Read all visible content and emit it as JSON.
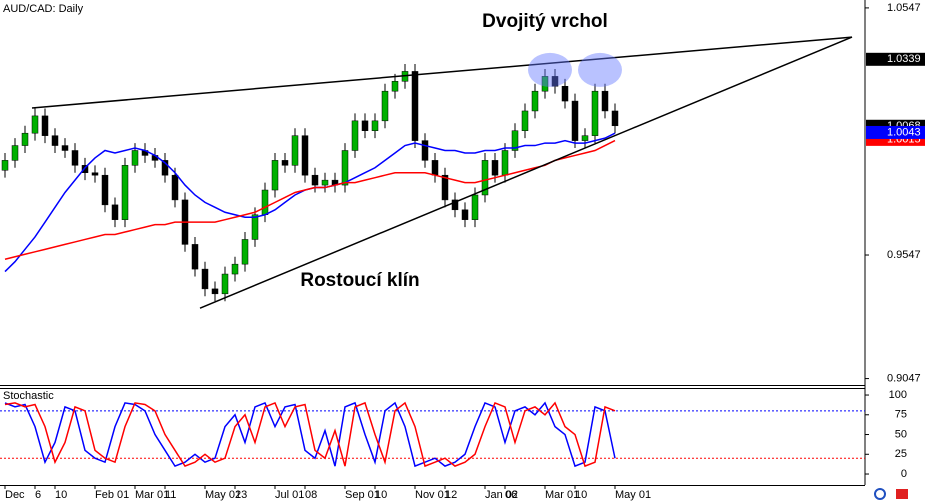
{
  "chart_data": {
    "type": "candlestick",
    "title": "AUD/CAD: Daily",
    "annotations": [
      {
        "text": "Dvojitý vrchol",
        "x": 54,
        "y": 1.049
      },
      {
        "text": "Rostoucí klín",
        "x": 35.5,
        "y": 0.9441
      }
    ],
    "categories": [
      "Dec",
      null,
      null,
      "6",
      null,
      "10",
      null,
      null,
      null,
      "Feb 01",
      null,
      null,
      null,
      "Mar 01",
      null,
      null,
      "11",
      null,
      null,
      null,
      "May 02",
      null,
      null,
      "13",
      null,
      null,
      null,
      "Jul 01",
      null,
      null,
      "08",
      null,
      null,
      null,
      "Sep 01",
      null,
      null,
      "10",
      null,
      null,
      null,
      "Nov 01",
      null,
      null,
      "12",
      null,
      null,
      null,
      "Jan 02",
      null,
      "06",
      null,
      null,
      null,
      "Mar 01",
      null,
      null,
      "10",
      null,
      null,
      null,
      "May 01"
    ],
    "open": [
      0.989,
      0.993,
      0.999,
      1.004,
      1.011,
      1.003,
      0.999,
      0.997,
      0.991,
      0.988,
      0.987,
      0.975,
      0.969,
      0.991,
      0.997,
      0.995,
      0.993,
      0.987,
      0.977,
      0.959,
      0.949,
      0.941,
      0.939,
      0.947,
      0.951,
      0.961,
      0.971,
      0.981,
      0.993,
      0.991,
      1.003,
      0.987,
      0.983,
      0.985,
      0.983,
      0.997,
      1.009,
      1.005,
      1.009,
      1.021,
      1.025,
      1.029,
      1.001,
      0.993,
      0.987,
      0.977,
      0.973,
      0.969,
      0.979,
      0.993,
      0.987,
      0.997,
      1.005,
      1.013,
      1.021,
      1.027,
      1.023,
      1.017,
      1.001,
      1.003,
      1.021,
      1.013
    ],
    "high": [
      0.996,
      1.002,
      1.007,
      1.014,
      1.014,
      1.006,
      1.002,
      1.0,
      0.994,
      0.991,
      0.99,
      0.978,
      0.994,
      1.0,
      1.0,
      0.998,
      0.996,
      0.99,
      0.98,
      0.962,
      0.952,
      0.944,
      0.95,
      0.954,
      0.964,
      0.974,
      0.984,
      0.996,
      0.996,
      1.006,
      1.006,
      0.99,
      0.988,
      0.988,
      1.0,
      1.012,
      1.012,
      1.012,
      1.024,
      1.028,
      1.032,
      1.032,
      1.004,
      0.996,
      0.99,
      0.98,
      0.976,
      0.982,
      0.996,
      0.996,
      1.0,
      1.008,
      1.016,
      1.024,
      1.03,
      1.03,
      1.026,
      1.02,
      1.006,
      1.024,
      1.024,
      1.016
    ],
    "low": [
      0.986,
      0.99,
      0.996,
      1.001,
      1.0,
      0.996,
      0.994,
      0.988,
      0.985,
      0.984,
      0.972,
      0.966,
      0.966,
      0.988,
      0.992,
      0.99,
      0.984,
      0.974,
      0.956,
      0.946,
      0.938,
      0.936,
      0.936,
      0.944,
      0.948,
      0.958,
      0.968,
      0.978,
      0.988,
      0.988,
      0.984,
      0.98,
      0.98,
      0.98,
      0.98,
      0.994,
      1.002,
      1.002,
      1.006,
      1.018,
      1.022,
      0.998,
      0.99,
      0.984,
      0.974,
      0.97,
      0.966,
      0.966,
      0.976,
      0.984,
      0.984,
      0.994,
      1.002,
      1.01,
      1.018,
      1.02,
      1.014,
      0.998,
      0.998,
      1.0,
      1.01,
      1.004
    ],
    "close": [
      0.993,
      0.999,
      1.004,
      1.011,
      1.003,
      0.999,
      0.997,
      0.991,
      0.988,
      0.987,
      0.975,
      0.969,
      0.991,
      0.997,
      0.995,
      0.993,
      0.987,
      0.977,
      0.959,
      0.949,
      0.941,
      0.939,
      0.947,
      0.951,
      0.961,
      0.971,
      0.981,
      0.993,
      0.991,
      1.003,
      0.987,
      0.983,
      0.985,
      0.983,
      0.997,
      1.009,
      1.005,
      1.009,
      1.021,
      1.025,
      1.029,
      1.001,
      0.993,
      0.987,
      0.977,
      0.973,
      0.969,
      0.979,
      0.993,
      0.987,
      0.997,
      1.005,
      1.013,
      1.021,
      1.027,
      1.023,
      1.017,
      1.001,
      1.003,
      1.021,
      1.013,
      1.007
    ],
    "up_color": "#00b000",
    "down_color": "#000000",
    "series": [
      {
        "color": "#0000ff",
        "values": [
          0.948,
          0.952,
          0.957,
          0.962,
          0.968,
          0.974,
          0.98,
          0.985,
          0.99,
          0.994,
          0.997,
          0.996,
          0.997,
          0.998,
          0.997,
          0.995,
          0.992,
          0.988,
          0.983,
          0.979,
          0.976,
          0.974,
          0.972,
          0.971,
          0.97,
          0.97,
          0.971,
          0.973,
          0.976,
          0.979,
          0.981,
          0.982,
          0.982,
          0.983,
          0.984,
          0.986,
          0.988,
          0.99,
          0.993,
          0.996,
          0.999,
          1.0,
          0.999,
          0.998,
          0.997,
          0.997,
          0.996,
          0.996,
          0.997,
          0.997,
          0.998,
          0.998,
          0.999,
          0.999,
          1.0,
          1.0,
          1.001,
          1.0,
          1.0,
          1.001,
          1.002,
          1.004
        ]
      },
      {
        "color": "#ff0000",
        "values": [
          0.953,
          0.954,
          0.955,
          0.956,
          0.957,
          0.958,
          0.959,
          0.96,
          0.961,
          0.962,
          0.963,
          0.963,
          0.964,
          0.965,
          0.966,
          0.967,
          0.967,
          0.968,
          0.968,
          0.968,
          0.968,
          0.968,
          0.969,
          0.97,
          0.971,
          0.972,
          0.974,
          0.976,
          0.978,
          0.98,
          0.981,
          0.982,
          0.982,
          0.983,
          0.984,
          0.984,
          0.985,
          0.986,
          0.987,
          0.988,
          0.988,
          0.988,
          0.988,
          0.987,
          0.986,
          0.985,
          0.984,
          0.984,
          0.985,
          0.986,
          0.987,
          0.988,
          0.989,
          0.99,
          0.991,
          0.993,
          0.994,
          0.995,
          0.996,
          0.997,
          0.999,
          1.001
        ]
      }
    ],
    "trend_lines": [
      {
        "x": [
          2.7,
          84.7
        ],
        "y": [
          1.0142,
          1.0429
        ]
      },
      {
        "x": [
          19.5,
          84.7
        ],
        "y": [
          0.9332,
          1.0429
        ]
      }
    ],
    "highlights": [
      {
        "x": 54.5,
        "y": 1.0296
      },
      {
        "x": 59.5,
        "y": 1.0296
      }
    ],
    "ylim": [
      0.9021,
      1.0579
    ],
    "yticks": [
      1.0547,
      0.9547,
      0.9047
    ],
    "price_labels": [
      {
        "value": 1.0339,
        "label": "1.0339",
        "color": "#000000"
      },
      {
        "value": 1.0068,
        "label": "1.0068",
        "color": "#000000"
      },
      {
        "value": 1.0015,
        "label": "1.0015",
        "color": "#ff0000"
      },
      {
        "value": 1.0043,
        "label": "1.0043",
        "color": "#0000ff"
      }
    ],
    "stochastic": {
      "name": "Stochastic",
      "ylim": [
        -13.9,
        108.9
      ],
      "yticks": [
        100,
        75,
        50,
        25,
        0
      ],
      "levels": [
        {
          "value": 80,
          "color": "#0000ff"
        },
        {
          "value": 20,
          "color": "#ff0000"
        }
      ],
      "series": [
        {
          "color": "#0000ff",
          "values": [
            90,
            85,
            88,
            60,
            15,
            40,
            85,
            80,
            30,
            20,
            15,
            60,
            90,
            88,
            80,
            50,
            30,
            10,
            15,
            25,
            15,
            20,
            60,
            75,
            40,
            85,
            90,
            60,
            85,
            88,
            30,
            20,
            55,
            10,
            85,
            90,
            50,
            15,
            80,
            90,
            60,
            10,
            15,
            20,
            10,
            15,
            25,
            60,
            90,
            85,
            40,
            80,
            85,
            75,
            90,
            60,
            50,
            10,
            15,
            85,
            80,
            20
          ]
        },
        {
          "color": "#ff0000",
          "values": [
            88,
            90,
            85,
            88,
            60,
            15,
            40,
            85,
            80,
            30,
            20,
            15,
            60,
            90,
            88,
            80,
            50,
            30,
            10,
            15,
            25,
            15,
            20,
            60,
            75,
            40,
            85,
            90,
            60,
            85,
            88,
            30,
            20,
            55,
            10,
            85,
            90,
            50,
            15,
            80,
            90,
            60,
            10,
            15,
            20,
            10,
            15,
            25,
            60,
            90,
            85,
            40,
            80,
            85,
            75,
            90,
            60,
            50,
            10,
            15,
            85,
            80
          ]
        }
      ]
    }
  }
}
